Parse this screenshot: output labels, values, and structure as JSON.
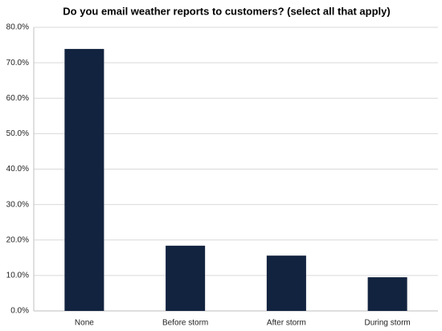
{
  "chart_data": {
    "type": "bar",
    "title": "Do you email weather reports to customers? (select all that apply)",
    "categories": [
      "None",
      "Before storm",
      "After storm",
      "During storm"
    ],
    "values": [
      73.9,
      18.4,
      15.6,
      9.5
    ],
    "color": "#12233f",
    "ylim": [
      0,
      80
    ],
    "yticks": [
      {
        "value": 0,
        "label": "0.0%"
      },
      {
        "value": 10,
        "label": "10.0%"
      },
      {
        "value": 20,
        "label": "20.0%"
      },
      {
        "value": 30,
        "label": "30.0%"
      },
      {
        "value": 40,
        "label": "40.0%"
      },
      {
        "value": 50,
        "label": "50.0%"
      },
      {
        "value": 60,
        "label": "60.0%"
      },
      {
        "value": 70,
        "label": "70.0%"
      },
      {
        "value": 80,
        "label": "80.0%"
      }
    ],
    "grid": true
  }
}
